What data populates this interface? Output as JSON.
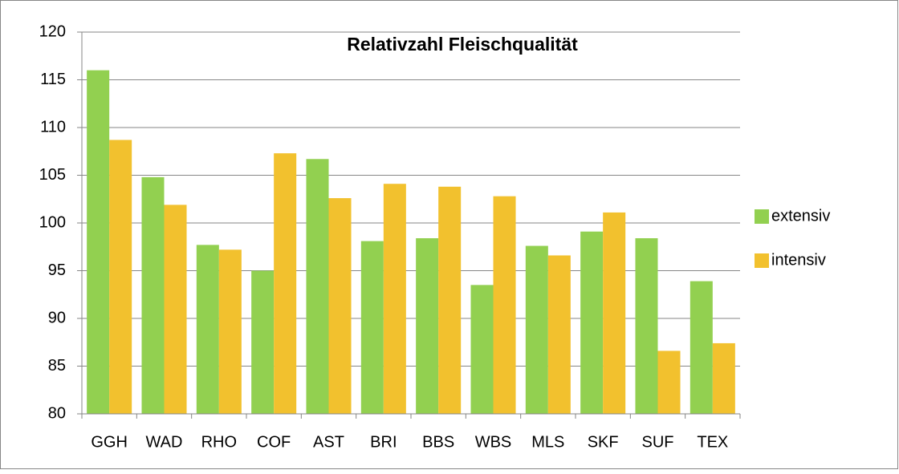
{
  "chart_data": {
    "type": "bar",
    "title": "Relativzahl Fleischqualität",
    "categories": [
      "GGH",
      "WAD",
      "RHO",
      "COF",
      "AST",
      "BRI",
      "BBS",
      "WBS",
      "MLS",
      "SKF",
      "SUF",
      "TEX"
    ],
    "series": [
      {
        "name": "extensiv",
        "color": "#92d050",
        "values": [
          116,
          104.8,
          97.7,
          95.0,
          106.7,
          98.1,
          98.4,
          93.5,
          97.6,
          99.1,
          98.4,
          93.9
        ]
      },
      {
        "name": "intensiv",
        "color": "#f2c12e",
        "values": [
          108.7,
          101.9,
          97.2,
          107.3,
          102.6,
          104.1,
          103.8,
          102.8,
          96.6,
          101.1,
          86.6,
          87.4
        ]
      }
    ],
    "ylim": [
      80,
      120
    ],
    "yticks": [
      80,
      85,
      90,
      95,
      100,
      105,
      110,
      115,
      120
    ],
    "grid": true,
    "legend": "right"
  }
}
